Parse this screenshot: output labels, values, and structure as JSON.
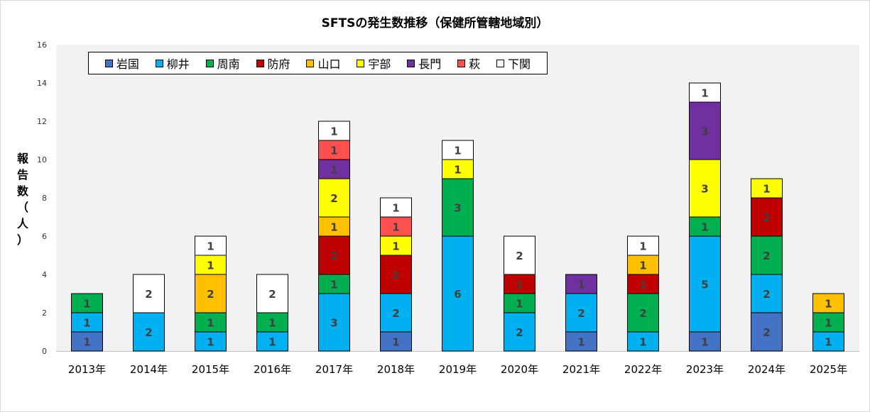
{
  "chart_data": {
    "type": "bar",
    "stacked": true,
    "title": "SFTSの発生数推移（保健所管轄地域別）",
    "ylabel": "報告数（人）",
    "ylim": [
      0,
      16
    ],
    "yticks": [
      0,
      2,
      4,
      6,
      8,
      10,
      12,
      14,
      16
    ],
    "grid": false,
    "legend_position": "top-left",
    "categories": [
      "2013年",
      "2014年",
      "2015年",
      "2016年",
      "2017年",
      "2018年",
      "2019年",
      "2020年",
      "2021年",
      "2022年",
      "2023年",
      "2024年",
      "2025年"
    ],
    "series": [
      {
        "name": "岩国",
        "color": "#4472c4",
        "values": [
          1,
          0,
          0,
          0,
          0,
          1,
          0,
          0,
          1,
          0,
          1,
          2,
          0
        ]
      },
      {
        "name": "柳井",
        "color": "#00b0f0",
        "values": [
          1,
          2,
          1,
          1,
          3,
          2,
          6,
          2,
          2,
          1,
          5,
          2,
          1
        ]
      },
      {
        "name": "周南",
        "color": "#00b050",
        "values": [
          1,
          0,
          1,
          1,
          1,
          0,
          3,
          1,
          0,
          2,
          1,
          2,
          1
        ]
      },
      {
        "name": "防府",
        "color": "#c00000",
        "values": [
          0,
          0,
          0,
          0,
          2,
          2,
          0,
          1,
          0,
          1,
          0,
          2,
          0
        ]
      },
      {
        "name": "山口",
        "color": "#ffc000",
        "values": [
          0,
          0,
          2,
          0,
          1,
          0,
          0,
          0,
          0,
          1,
          0,
          0,
          1
        ]
      },
      {
        "name": "宇部",
        "color": "#ffff00",
        "values": [
          0,
          0,
          1,
          0,
          2,
          1,
          1,
          0,
          0,
          0,
          3,
          1,
          0
        ]
      },
      {
        "name": "長門",
        "color": "#7030a0",
        "values": [
          0,
          0,
          0,
          0,
          1,
          0,
          0,
          0,
          1,
          0,
          3,
          0,
          0
        ]
      },
      {
        "name": "萩",
        "color": "#ff5050",
        "values": [
          0,
          0,
          0,
          0,
          1,
          1,
          0,
          0,
          0,
          0,
          0,
          0,
          0
        ]
      },
      {
        "name": "下関",
        "color": "#ffffff",
        "values": [
          0,
          2,
          1,
          2,
          1,
          1,
          1,
          2,
          0,
          1,
          1,
          0,
          0
        ]
      }
    ]
  }
}
